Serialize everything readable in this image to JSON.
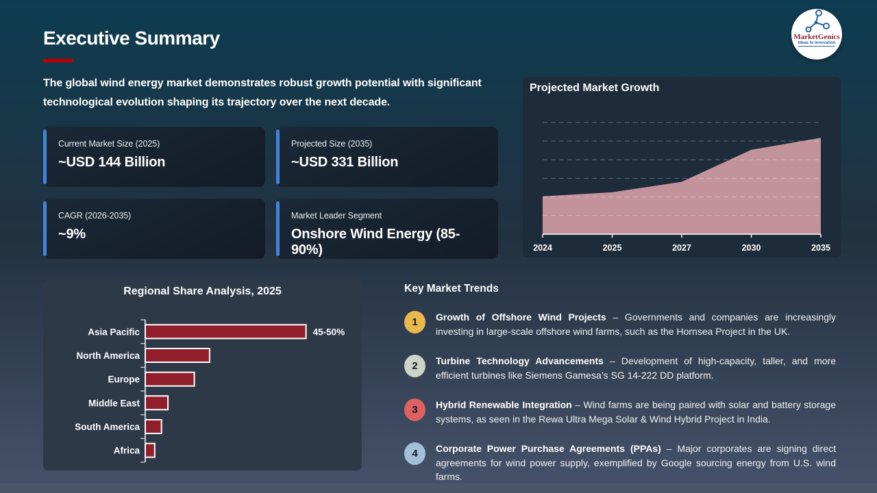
{
  "slide": {
    "title": "Executive Summary",
    "intro": "The global wind energy market demonstrates robust growth potential with significant technological evolution shaping its trajectory over the next decade."
  },
  "logo": {
    "name": "MarketGenics",
    "tagline": "Ideas to Innovation"
  },
  "stats": [
    {
      "label": "Current Market Size (2025)",
      "value": "~USD 144 Billion"
    },
    {
      "label": "Projected Size (2035)",
      "value": "~USD 331 Billion"
    },
    {
      "label": "CAGR (2026-2035)",
      "value": "~9%"
    },
    {
      "label": "Market Leader Segment",
      "value": "Onshore Wind Energy (85-90%)"
    }
  ],
  "chart_data": [
    {
      "type": "area",
      "title": "Projected Market Growth",
      "categories": [
        "2024",
        "2025",
        "2027",
        "2030",
        "2035"
      ],
      "values": [
        130,
        144,
        180,
        290,
        331
      ],
      "ylim": [
        0,
        400
      ],
      "grid_step": 64,
      "grid": "dashed-horizontal",
      "legend": "none"
    },
    {
      "type": "bar",
      "orientation": "horizontal",
      "title": "Regional Share Analysis, 2025",
      "categories": [
        "Asia Pacific",
        "North America",
        "Europe",
        "Middle East",
        "South America",
        "Africa"
      ],
      "values": [
        47.5,
        19,
        14.5,
        6.7,
        4.8,
        2.8
      ],
      "xlim": [
        0,
        50
      ],
      "point_labels": [
        "45-50%",
        "",
        "",
        "",
        "",
        ""
      ],
      "legend": "none"
    }
  ],
  "trends": {
    "heading": "Key Market Trends",
    "items": [
      {
        "num": "1",
        "color": "#e9b94e",
        "title": "Growth of Offshore Wind Projects",
        "text": "– Governments and companies are increasingly investing in large-scale offshore wind farms, such as the Hornsea Project in the UK."
      },
      {
        "num": "2",
        "color": "#ccd3c8",
        "title": "Turbine Technology Advancements",
        "text": "– Development of high-capacity, taller, and more efficient turbines like Siemens Gamesa’s SG 14-222 DD platform."
      },
      {
        "num": "3",
        "color": "#dd6161",
        "title": "Hybrid Renewable Integration",
        "text": "– Wind farms are being paired with solar and battery storage systems, as seen in the Rewa Ultra Mega Solar & Wind Hybrid Project in India."
      },
      {
        "num": "4",
        "color": "#a4c0d6",
        "title": "Corporate Power Purchase Agreements (PPAs)",
        "text": "– Major corporates are signing direct agreements for wind power supply, exemplified by Google sourcing energy from U.S. wind farms."
      }
    ]
  },
  "colors": {
    "bg_top": "#0d3c50",
    "bg_mid": "#223140",
    "bg_bottom": "#46526a",
    "panel_dark": "#1d2b3a",
    "panel_light": "#2e3948",
    "card_bg": "#141e29",
    "accent_blue": "#4383d8",
    "accent_red": "#c00000",
    "area_fill": "#c2939b",
    "bar_fill": "#911e2b",
    "footer_band": "#4b5669"
  }
}
